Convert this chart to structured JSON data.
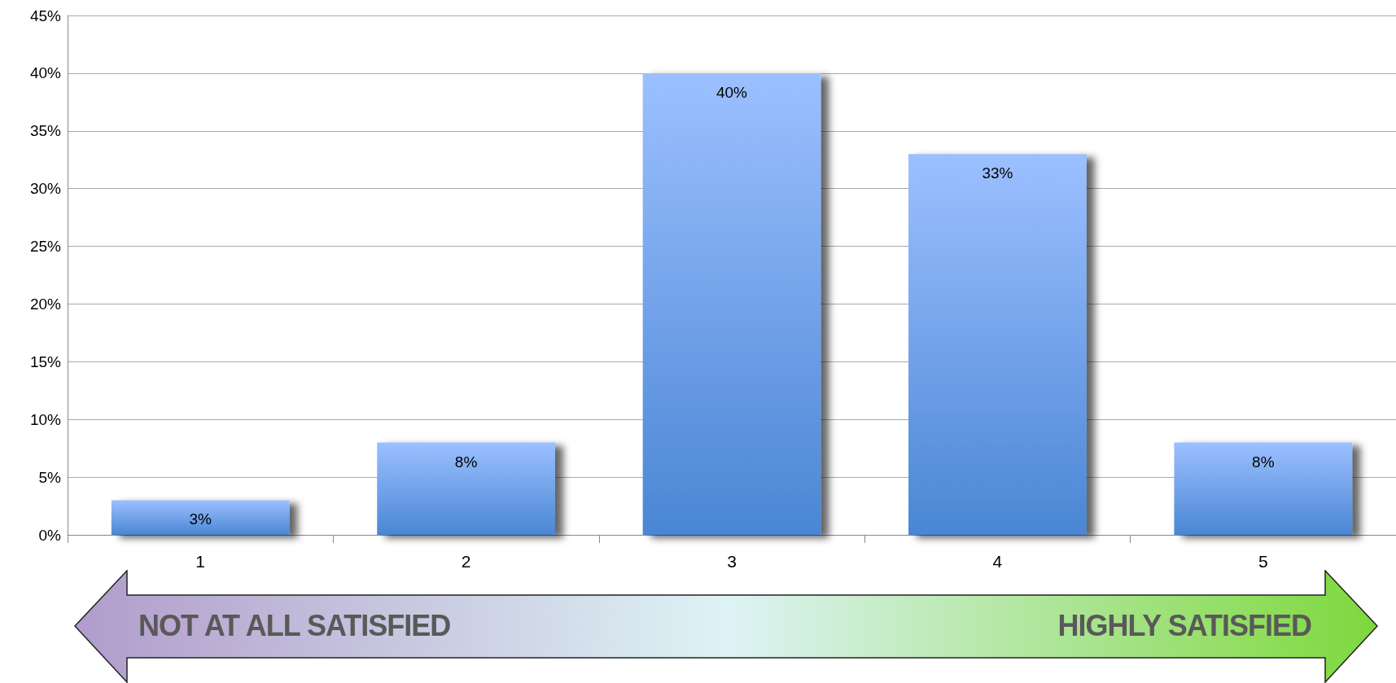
{
  "chart_data": {
    "type": "bar",
    "categories": [
      "1",
      "2",
      "3",
      "4",
      "5"
    ],
    "values": [
      3,
      8,
      40,
      33,
      8
    ],
    "value_labels": [
      "3%",
      "8%",
      "40%",
      "33%",
      "8%"
    ],
    "color": "#4a86d4",
    "ylim": [
      0,
      45
    ],
    "yticks": [
      {
        "value": 0,
        "label": "0%"
      },
      {
        "value": 5,
        "label": "5%"
      },
      {
        "value": 10,
        "label": "10%"
      },
      {
        "value": 15,
        "label": "15%"
      },
      {
        "value": 20,
        "label": "20%"
      },
      {
        "value": 25,
        "label": "25%"
      },
      {
        "value": 30,
        "label": "30%"
      },
      {
        "value": 35,
        "label": "35%"
      },
      {
        "value": 40,
        "label": "40%"
      },
      {
        "value": 45,
        "label": "45%"
      }
    ],
    "grid": "y",
    "annotations": [
      "NOT AT ALL SATISFIED",
      "HIGHLY SATISFIED"
    ]
  }
}
